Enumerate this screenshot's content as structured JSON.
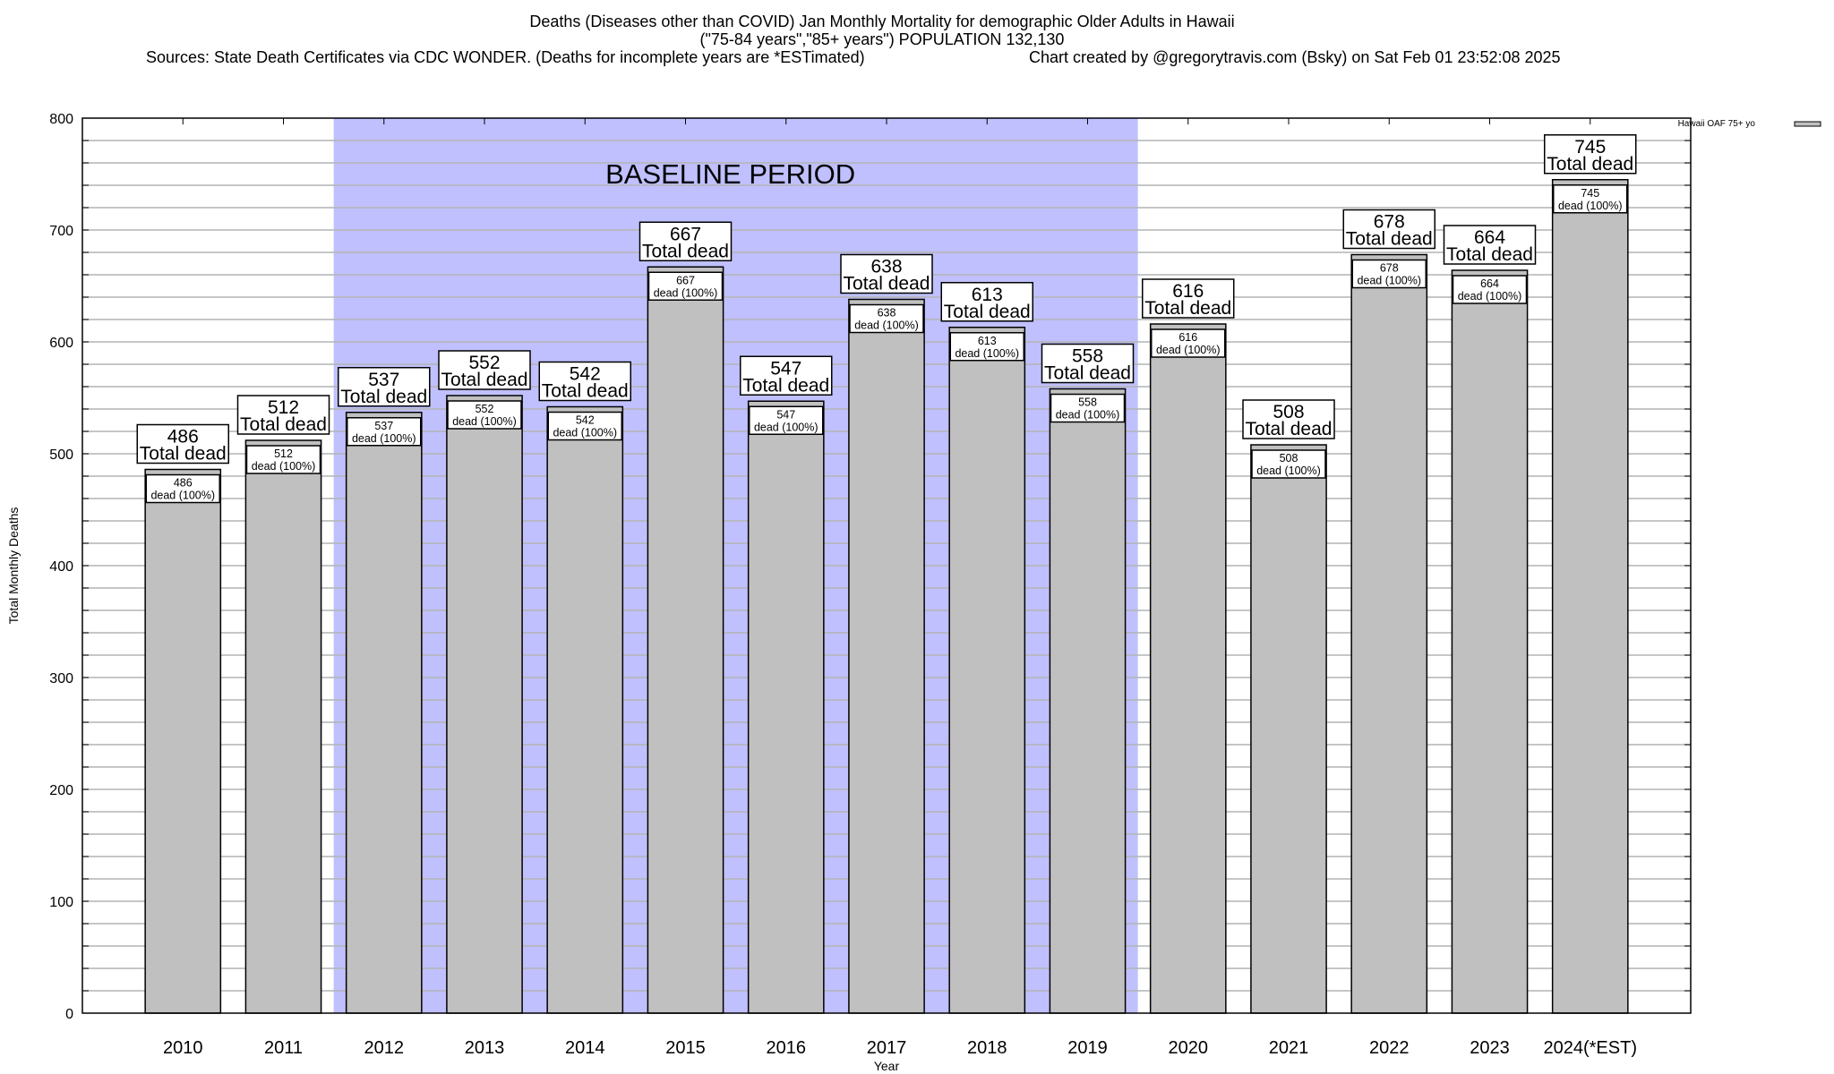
{
  "chart_data": {
    "type": "bar",
    "title": "Deaths (Diseases other than COVID) Jan Monthly Mortality for demographic Older Adults in Hawaii",
    "subtitle": "(\"75-84 years\",\"85+ years\") POPULATION 132,130",
    "sources": "Sources: State Death Certificates via CDC WONDER. (Deaths for incomplete years are *ESTimated)",
    "credit": "Chart created by @gregorytravis.com (Bsky) on Sat Feb 01 23:52:08 2025",
    "xlabel": "Year",
    "ylabel": "Total Monthly Deaths",
    "ylim": [
      0,
      800
    ],
    "yticks": [
      0,
      100,
      200,
      300,
      400,
      500,
      600,
      700,
      800
    ],
    "minor_grid_step": 20,
    "grid": true,
    "legend": {
      "label": "Hawaii OAF 75+ yo",
      "placement": "top-right outside",
      "color": "#c0c0c0"
    },
    "categories": [
      "2010",
      "2011",
      "2012",
      "2013",
      "2014",
      "2015",
      "2016",
      "2017",
      "2018",
      "2019",
      "2020",
      "2021",
      "2022",
      "2023",
      "2024(*EST)"
    ],
    "values": [
      486,
      512,
      537,
      552,
      542,
      667,
      547,
      638,
      613,
      558,
      616,
      508,
      678,
      664,
      745
    ],
    "top_label_suffix": "Total dead",
    "inner_label_suffix": "dead (100%)",
    "baseline": {
      "label": "BASELINE PERIOD",
      "from": "2012",
      "to": "2019",
      "color": "#c0c0ff"
    },
    "bar_color": "#c0c0c0"
  }
}
